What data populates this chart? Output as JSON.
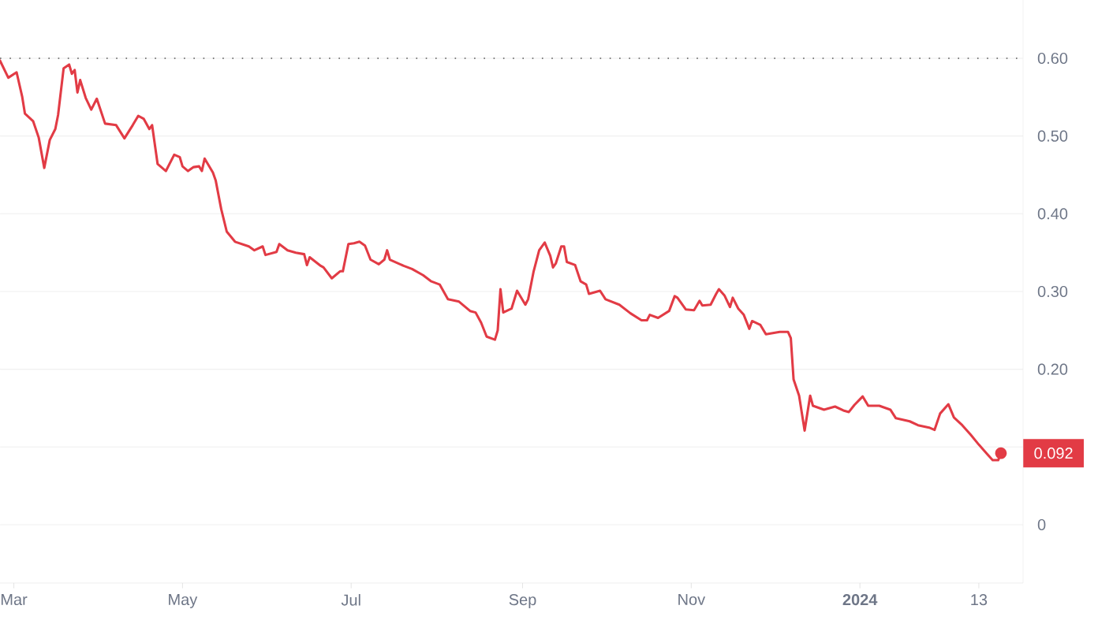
{
  "chart_data": {
    "type": "line",
    "x": [
      "2023-02-24",
      "2023-02-27",
      "2023-03-02",
      "2023-03-04",
      "2023-03-05",
      "2023-03-08",
      "2023-03-10",
      "2023-03-12",
      "2023-03-14",
      "2023-03-16",
      "2023-03-17",
      "2023-03-19",
      "2023-03-21",
      "2023-03-22",
      "2023-03-23",
      "2023-03-24",
      "2023-03-25",
      "2023-03-27",
      "2023-03-29",
      "2023-03-31",
      "2023-04-03",
      "2023-04-07",
      "2023-04-10",
      "2023-04-13",
      "2023-04-15",
      "2023-04-17",
      "2023-04-19",
      "2023-04-20",
      "2023-04-22",
      "2023-04-25",
      "2023-04-28",
      "2023-04-30",
      "2023-05-01",
      "2023-05-03",
      "2023-05-05",
      "2023-05-07",
      "2023-05-08",
      "2023-05-09",
      "2023-05-12",
      "2023-05-13",
      "2023-05-15",
      "2023-05-17",
      "2023-05-20",
      "2023-05-25",
      "2023-05-27",
      "2023-05-30",
      "2023-05-31",
      "2023-06-04",
      "2023-06-05",
      "2023-06-08",
      "2023-06-11",
      "2023-06-14",
      "2023-06-15",
      "2023-06-16",
      "2023-06-20",
      "2023-06-21",
      "2023-06-24",
      "2023-06-27",
      "2023-06-28",
      "2023-06-30",
      "2023-07-02",
      "2023-07-04",
      "2023-07-06",
      "2023-07-08",
      "2023-07-11",
      "2023-07-13",
      "2023-07-14",
      "2023-07-15",
      "2023-07-20",
      "2023-07-23",
      "2023-07-27",
      "2023-07-30",
      "2023-08-02",
      "2023-08-05",
      "2023-08-09",
      "2023-08-13",
      "2023-08-15",
      "2023-08-17",
      "2023-08-19",
      "2023-08-22",
      "2023-08-23",
      "2023-08-24",
      "2023-08-25",
      "2023-08-28",
      "2023-08-30",
      "2023-09-02",
      "2023-09-03",
      "2023-09-05",
      "2023-09-07",
      "2023-09-09",
      "2023-09-11",
      "2023-09-12",
      "2023-09-13",
      "2023-09-15",
      "2023-09-16",
      "2023-09-17",
      "2023-09-20",
      "2023-09-22",
      "2023-09-24",
      "2023-09-25",
      "2023-09-29",
      "2023-10-01",
      "2023-10-06",
      "2023-10-10",
      "2023-10-14",
      "2023-10-16",
      "2023-10-17",
      "2023-10-20",
      "2023-10-24",
      "2023-10-26",
      "2023-10-27",
      "2023-10-30",
      "2023-11-02",
      "2023-11-04",
      "2023-11-05",
      "2023-11-08",
      "2023-11-10",
      "2023-11-11",
      "2023-11-13",
      "2023-11-15",
      "2023-11-16",
      "2023-11-18",
      "2023-11-20",
      "2023-11-22",
      "2023-11-23",
      "2023-11-26",
      "2023-11-28",
      "2023-12-03",
      "2023-12-06",
      "2023-12-07",
      "2023-12-08",
      "2023-12-10",
      "2023-12-12",
      "2023-12-14",
      "2023-12-15",
      "2023-12-19",
      "2023-12-23",
      "2023-12-26",
      "2023-12-28",
      "2023-12-30",
      "2024-01-02",
      "2024-01-04",
      "2024-01-08",
      "2024-01-12",
      "2024-01-14",
      "2024-01-19",
      "2024-01-22",
      "2024-01-26",
      "2024-01-28",
      "2024-01-30",
      "2024-02-02",
      "2024-02-04",
      "2024-02-07",
      "2024-02-10",
      "2024-02-13",
      "2024-02-16",
      "2024-02-18",
      "2024-02-20",
      "2024-02-21"
    ],
    "series": [
      {
        "color": "#e23b45",
        "line_style": "solid",
        "values": [
          0.597,
          0.575,
          0.582,
          0.551,
          0.529,
          0.519,
          0.498,
          0.459,
          0.495,
          0.509,
          0.527,
          0.587,
          0.592,
          0.58,
          0.585,
          0.556,
          0.572,
          0.549,
          0.534,
          0.548,
          0.516,
          0.514,
          0.497,
          0.514,
          0.526,
          0.522,
          0.509,
          0.514,
          0.464,
          0.455,
          0.476,
          0.473,
          0.461,
          0.455,
          0.46,
          0.461,
          0.455,
          0.471,
          0.453,
          0.443,
          0.406,
          0.377,
          0.364,
          0.358,
          0.353,
          0.358,
          0.347,
          0.351,
          0.361,
          0.353,
          0.35,
          0.348,
          0.334,
          0.344,
          0.333,
          0.331,
          0.317,
          0.326,
          0.326,
          0.361,
          0.362,
          0.364,
          0.359,
          0.341,
          0.335,
          0.341,
          0.353,
          0.341,
          0.333,
          0.329,
          0.321,
          0.313,
          0.309,
          0.29,
          0.287,
          0.275,
          0.273,
          0.26,
          0.242,
          0.238,
          0.25,
          0.303,
          0.273,
          0.278,
          0.301,
          0.283,
          0.29,
          0.326,
          0.353,
          0.363,
          0.346,
          0.331,
          0.336,
          0.358,
          0.358,
          0.338,
          0.334,
          0.313,
          0.309,
          0.297,
          0.301,
          0.29,
          0.283,
          0.272,
          0.263,
          0.263,
          0.27,
          0.266,
          0.275,
          0.294,
          0.292,
          0.277,
          0.276,
          0.288,
          0.282,
          0.283,
          0.297,
          0.303,
          0.295,
          0.28,
          0.292,
          0.278,
          0.27,
          0.252,
          0.262,
          0.257,
          0.245,
          0.248,
          0.248,
          0.24,
          0.187,
          0.166,
          0.121,
          0.166,
          0.153,
          0.148,
          0.152,
          0.147,
          0.145,
          0.154,
          0.165,
          0.153,
          0.153,
          0.148,
          0.137,
          0.133,
          0.128,
          0.125,
          0.122,
          0.143,
          0.155,
          0.138,
          0.128,
          0.116,
          0.103,
          0.091,
          0.083,
          0.083,
          0.092
        ]
      }
    ],
    "xlim": [
      "2023-02-24",
      "2024-02-29"
    ],
    "xticks": [
      {
        "value": "2023-03-01",
        "label": "Mar"
      },
      {
        "value": "2023-05-01",
        "label": "May"
      },
      {
        "value": "2023-07-01",
        "label": "Jul"
      },
      {
        "value": "2023-09-01",
        "label": "Sep"
      },
      {
        "value": "2023-11-01",
        "label": "Nov"
      },
      {
        "value": "2024-01-01",
        "label": "**2024**"
      },
      {
        "value": "2024-02-13",
        "label": "13"
      }
    ],
    "ylim": [
      -0.075,
      0.675
    ],
    "yticks": [
      0,
      {
        "value": 0.1,
        "label": null
      },
      {
        "value": 0.2,
        "label": "0.20"
      },
      {
        "value": 0.3,
        "label": "0.30"
      },
      {
        "value": 0.4,
        "label": "0.40"
      },
      {
        "value": 0.5,
        "label": "0.50"
      },
      {
        "value": 0.6,
        "label": "0.60"
      }
    ],
    "grid": "y",
    "marker": "none",
    "ref_lines": [
      {
        "axis": "y",
        "value": 0.6,
        "color": "#555555",
        "line_style": "dotted"
      }
    ],
    "annotations": [
      {
        "text": "0.092",
        "x": "2024-02-21",
        "y": 0.092
      }
    ]
  }
}
